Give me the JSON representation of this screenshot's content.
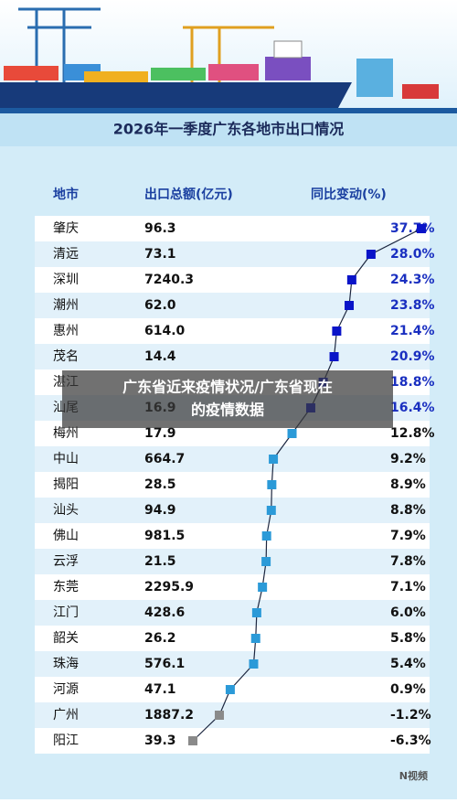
{
  "header": {
    "title": "2026年一季度广东各地市出口情况"
  },
  "overlay_title": "广东省近来疫情状况/广东省现在的疫情数据",
  "footer": {
    "logo": "N视频"
  },
  "chart_data": {
    "type": "dot",
    "columns": [
      "地市",
      "出口总额(亿元)",
      "同比变动(%)"
    ],
    "categories": [
      "肇庆",
      "清远",
      "深圳",
      "潮州",
      "惠州",
      "茂名",
      "湛江",
      "汕尾",
      "梅州",
      "中山",
      "揭阳",
      "汕头",
      "佛山",
      "云浮",
      "东莞",
      "江门",
      "韶关",
      "珠海",
      "河源",
      "广州",
      "阳江"
    ],
    "series": [
      {
        "name": "出口总额(亿元)",
        "values": [
          96.3,
          73.1,
          7240.3,
          62.0,
          614.0,
          14.4,
          null,
          16.9,
          17.9,
          664.7,
          28.5,
          94.9,
          981.5,
          21.5,
          2295.9,
          428.6,
          26.2,
          576.1,
          47.1,
          1887.2,
          39.3
        ],
        "value_labels": [
          "96.3",
          "73.1",
          "7240.3",
          "62.0",
          "614.0",
          "14.4",
          null,
          "16.9",
          "17.9",
          "664.7",
          "28.5",
          "94.9",
          "981.5",
          "21.5",
          "2295.9",
          "428.6",
          "26.2",
          "576.1",
          "47.1",
          "1887.2",
          "39.3"
        ]
      },
      {
        "name": "同比变动(%)",
        "values": [
          37.7,
          28.0,
          24.3,
          23.8,
          21.4,
          20.9,
          18.8,
          16.4,
          12.8,
          9.2,
          8.9,
          8.8,
          7.9,
          7.8,
          7.1,
          6.0,
          5.8,
          5.4,
          0.9,
          -1.2,
          -6.3
        ],
        "value_labels": [
          "37.7%",
          "28.0%",
          "24.3%",
          "23.8%",
          "21.4%",
          "20.9%",
          "18.8%",
          "16.4%",
          "12.8%",
          "9.2%",
          "8.9%",
          "8.8%",
          "7.9%",
          "7.8%",
          "7.1%",
          "6.0%",
          "5.8%",
          "5.4%",
          "0.9%",
          "-1.2%",
          "-6.3%"
        ],
        "colors": [
          "#0a14c8",
          "#0a14c8",
          "#0a14c8",
          "#0a14c8",
          "#0a14c8",
          "#0a14c8",
          "#0a14c8",
          "#0a14c8",
          "#2b9ad8",
          "#2b9ad8",
          "#2b9ad8",
          "#2b9ad8",
          "#2b9ad8",
          "#2b9ad8",
          "#2b9ad8",
          "#2b9ad8",
          "#2b9ad8",
          "#2b9ad8",
          "#2b9ad8",
          "#8a8a8a",
          "#8a8a8a"
        ],
        "label_colors": [
          "#1a2fc0",
          "#1a2fc0",
          "#1a2fc0",
          "#1a2fc0",
          "#1a2fc0",
          "#1a2fc0",
          "#1a2fc0",
          "#1a2fc0",
          "#111111",
          "#111111",
          "#111111",
          "#111111",
          "#111111",
          "#111111",
          "#111111",
          "#111111",
          "#111111",
          "#111111",
          "#111111",
          "#111111",
          "#111111"
        ],
        "line_color": "#1d2740"
      }
    ]
  }
}
